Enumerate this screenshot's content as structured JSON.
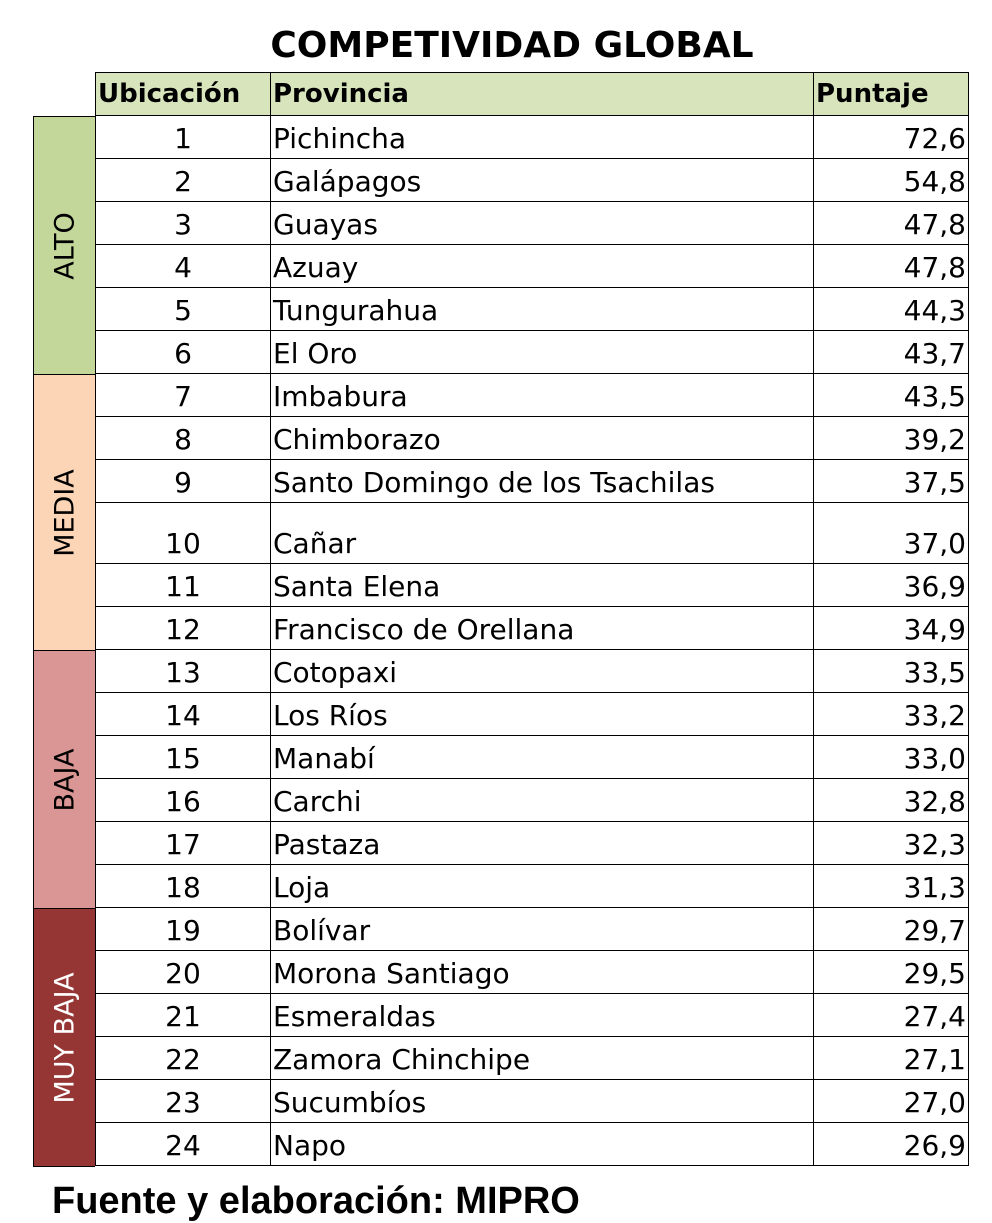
{
  "title": "COMPETIVIDAD GLOBAL",
  "headers": {
    "rank": "Ubicación",
    "province": "Provincia",
    "score": "Puntaje"
  },
  "groups": [
    {
      "label": "ALTO",
      "color": "#c4d79b"
    },
    {
      "label": "MEDIA",
      "color": "#fbd5b5"
    },
    {
      "label": "BAJA",
      "color": "#da9694"
    },
    {
      "label": "MUY BAJA",
      "color": "#963634",
      "text_color": "#ffffff"
    }
  ],
  "rows": [
    {
      "rank": "1",
      "province": "Pichincha",
      "score": "72,6"
    },
    {
      "rank": "2",
      "province": "Galápagos",
      "score": "54,8"
    },
    {
      "rank": "3",
      "province": "Guayas",
      "score": "47,8"
    },
    {
      "rank": "4",
      "province": "Azuay",
      "score": "47,8"
    },
    {
      "rank": "5",
      "province": "Tungurahua",
      "score": "44,3"
    },
    {
      "rank": "6",
      "province": "El Oro",
      "score": "43,7"
    },
    {
      "rank": "7",
      "province": "Imbabura",
      "score": "43,5"
    },
    {
      "rank": "8",
      "province": "Chimborazo",
      "score": "39,2"
    },
    {
      "rank": "9",
      "province": "Santo Domingo de los Tsachilas",
      "score": "37,5"
    },
    {
      "rank": "10",
      "province": "Cañar",
      "score": "37,0"
    },
    {
      "rank": "11",
      "province": "Santa Elena",
      "score": "36,9"
    },
    {
      "rank": "12",
      "province": "Francisco de Orellana",
      "score": "34,9"
    },
    {
      "rank": "13",
      "province": "Cotopaxi",
      "score": "33,5"
    },
    {
      "rank": "14",
      "province": "Los Ríos",
      "score": "33,2"
    },
    {
      "rank": "15",
      "province": "Manabí",
      "score": "33,0"
    },
    {
      "rank": "16",
      "province": "Carchi",
      "score": "32,8"
    },
    {
      "rank": "17",
      "province": "Pastaza",
      "score": "32,3"
    },
    {
      "rank": "18",
      "province": "Loja",
      "score": "31,3"
    },
    {
      "rank": "19",
      "province": "Bolívar",
      "score": "29,7"
    },
    {
      "rank": "20",
      "province": "Morona Santiago",
      "score": "29,5"
    },
    {
      "rank": "21",
      "province": "Esmeraldas",
      "score": "27,4"
    },
    {
      "rank": "22",
      "province": "Zamora Chinchipe",
      "score": "27,1"
    },
    {
      "rank": "23",
      "province": "Sucumbíos",
      "score": "27,0"
    },
    {
      "rank": "24",
      "province": "Napo",
      "score": "26,9"
    }
  ],
  "footer": "Fuente y elaboración: MIPRO"
}
